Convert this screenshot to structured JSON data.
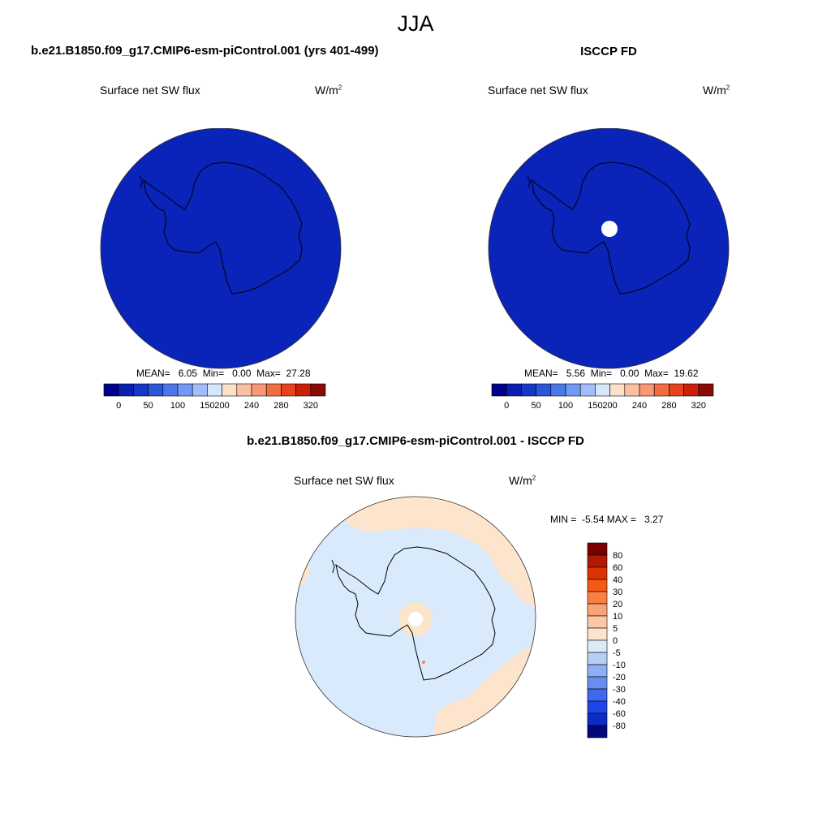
{
  "main_title": "JJA",
  "panels": {
    "model": {
      "title": "b.e21.B1850.f09_g17.CMIP6-esm-piControl.001 (yrs 401-499)",
      "variable": "Surface net SW flux",
      "units_base": "W/m",
      "units_exp": "2",
      "mean_label": "MEAN=",
      "mean": "6.05",
      "min_label": "Min=",
      "min": "0.00",
      "max_label": "Max=",
      "max": "27.28"
    },
    "obs": {
      "title": "ISCCP FD",
      "variable": "Surface net SW flux",
      "units_base": "W/m",
      "units_exp": "2",
      "mean_label": "MEAN=",
      "mean": "5.56",
      "min_label": "Min=",
      "min": "0.00",
      "max_label": "Max=",
      "max": "19.62"
    },
    "diff": {
      "title": "b.e21.B1850.f09_g17.CMIP6-esm-piControl.001 - ISCCP FD",
      "variable": "Surface net SW flux",
      "units_base": "W/m",
      "units_exp": "2",
      "min_label": "MIN =",
      "min": "-5.54",
      "max_label": "MAX =",
      "max": "3.27"
    }
  },
  "colorbars": {
    "field": {
      "colors": [
        "#00008a",
        "#0a1fb0",
        "#1638c8",
        "#2a56dc",
        "#4a78ea",
        "#7098f4",
        "#a2bdfa",
        "#d6e6fc",
        "#fde0c8",
        "#fcbfa0",
        "#f99874",
        "#f26c44",
        "#e6421c",
        "#c8200a",
        "#8a0a04"
      ],
      "tick_labels": [
        "0",
        "50",
        "100",
        "150",
        "200",
        "240",
        "280",
        "320"
      ]
    },
    "diff": {
      "colors": [
        "#7a0000",
        "#b01a00",
        "#dc3400",
        "#f55a14",
        "#f88040",
        "#f9a474",
        "#fbc7a4",
        "#fde2cc",
        "#dceaf8",
        "#b6cff6",
        "#8eaff4",
        "#6a8ef0",
        "#3f68ee",
        "#1c46ea",
        "#0c2cc4",
        "#00087a"
      ],
      "tick_labels": [
        "80",
        "60",
        "40",
        "30",
        "20",
        "10",
        "5",
        "0",
        "-5",
        "-10",
        "-20",
        "-30",
        "-40",
        "-60",
        "-80"
      ]
    }
  },
  "map_colors": {
    "field_fill": "#0a23b8",
    "diff_fill": "#d8eafb",
    "diff_positive": "#fde4cc",
    "hole": "#ffffff",
    "coast": "#000000"
  }
}
